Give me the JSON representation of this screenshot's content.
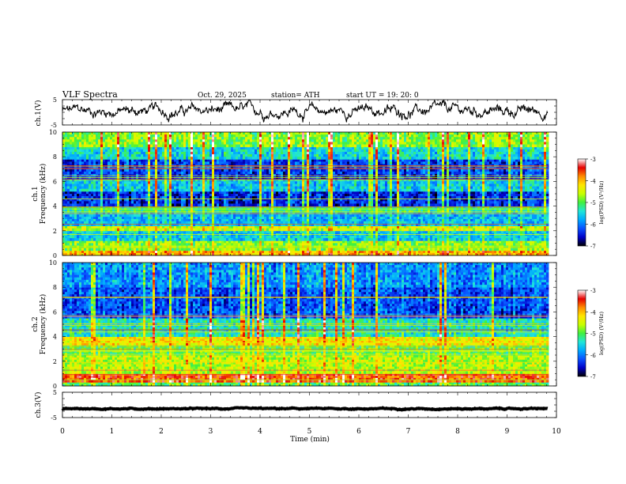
{
  "header": {
    "title": "VLF  Spectra",
    "date": "Oct. 29, 2025",
    "station": "station= ATH",
    "start": "start  UT  =    19: 20: 0"
  },
  "colors": {
    "spectrum_stops": [
      "#000000",
      "#0000c8",
      "#0a50ff",
      "#00aaff",
      "#20e6d8",
      "#40f040",
      "#c8ff00",
      "#ffe600",
      "#ff8c00",
      "#e60000",
      "#ffffff"
    ],
    "trace": "#000000",
    "frame": "#000000"
  },
  "chart_data": [
    {
      "type": "line",
      "name": "ch1-waveform",
      "ylabel": "ch.1(V)",
      "ylim": [
        -5,
        5
      ],
      "yticks": [
        "5",
        "-5"
      ],
      "x_range_min": [
        0,
        10
      ],
      "data_extent_min": [
        0,
        9.82
      ],
      "mean_v": 0.5,
      "spread_v": 2.2
    },
    {
      "type": "heatmap",
      "name": "ch1-spectrogram",
      "ylabel": "ch.1\nFrequency (kHz)",
      "ylim_khz": [
        0,
        10
      ],
      "yticks": [
        "0",
        "2",
        "4",
        "6",
        "8",
        "10"
      ],
      "x_range_min": [
        0,
        10
      ],
      "data_extent_min": [
        0,
        9.82
      ],
      "colorbar": {
        "label": "log(PSD) (V²/Hz)",
        "range": [
          -7,
          -3
        ],
        "ticks": [
          "-3",
          "-4",
          "-5",
          "-6",
          "-7"
        ]
      },
      "bands": [
        {
          "f": [
            0,
            0.4
          ],
          "level": 0.75
        },
        {
          "f": [
            0.4,
            1.2
          ],
          "level": 0.55
        },
        {
          "f": [
            1.2,
            2.0
          ],
          "level": 0.35
        },
        {
          "f": [
            2.0,
            2.4
          ],
          "level": 0.62
        },
        {
          "f": [
            2.4,
            3.5
          ],
          "level": 0.32
        },
        {
          "f": [
            3.5,
            4.0
          ],
          "level": 0.45
        },
        {
          "f": [
            4.0,
            5.2
          ],
          "level": 0.15
        },
        {
          "f": [
            5.2,
            6.2
          ],
          "level": 0.35
        },
        {
          "f": [
            6.2,
            7.8
          ],
          "level": 0.18
        },
        {
          "f": [
            7.8,
            8.8
          ],
          "level": 0.38
        },
        {
          "f": [
            8.8,
            10
          ],
          "level": 0.55
        }
      ]
    },
    {
      "type": "heatmap",
      "name": "ch2-spectrogram",
      "ylabel": "ch.2\nFrequency (kHz)",
      "ylim_khz": [
        0,
        10
      ],
      "yticks": [
        "0",
        "2",
        "4",
        "6",
        "8",
        "10"
      ],
      "x_range_min": [
        0,
        10
      ],
      "data_extent_min": [
        0,
        9.82
      ],
      "colorbar": {
        "label": "log(PSD) (V²/Hz)",
        "range": [
          -7,
          -3
        ],
        "ticks": [
          "-3",
          "-4",
          "-5",
          "-6",
          "-7"
        ]
      },
      "bands": [
        {
          "f": [
            0,
            0.3
          ],
          "level": 0.5
        },
        {
          "f": [
            0.3,
            1.0
          ],
          "level": 0.85
        },
        {
          "f": [
            1.0,
            2.5
          ],
          "level": 0.6
        },
        {
          "f": [
            2.5,
            3.3
          ],
          "level": 0.5
        },
        {
          "f": [
            3.3,
            4.0
          ],
          "level": 0.68
        },
        {
          "f": [
            4.0,
            5.5
          ],
          "level": 0.42
        },
        {
          "f": [
            5.5,
            8.0
          ],
          "level": 0.2
        },
        {
          "f": [
            8.0,
            10
          ],
          "level": 0.28
        }
      ]
    },
    {
      "type": "line",
      "name": "ch3-waveform",
      "ylabel": "ch.3(V)",
      "ylim": [
        -5,
        5
      ],
      "yticks": [
        "5",
        "-5"
      ],
      "x_range_min": [
        0,
        10
      ],
      "data_extent_min": [
        0,
        9.82
      ],
      "mean_v": -1.5,
      "spread_v": 0.2
    }
  ],
  "xaxis": {
    "label": "Time  (min)",
    "ticks": [
      "0",
      "1",
      "2",
      "3",
      "4",
      "5",
      "6",
      "7",
      "8",
      "9",
      "10"
    ]
  }
}
